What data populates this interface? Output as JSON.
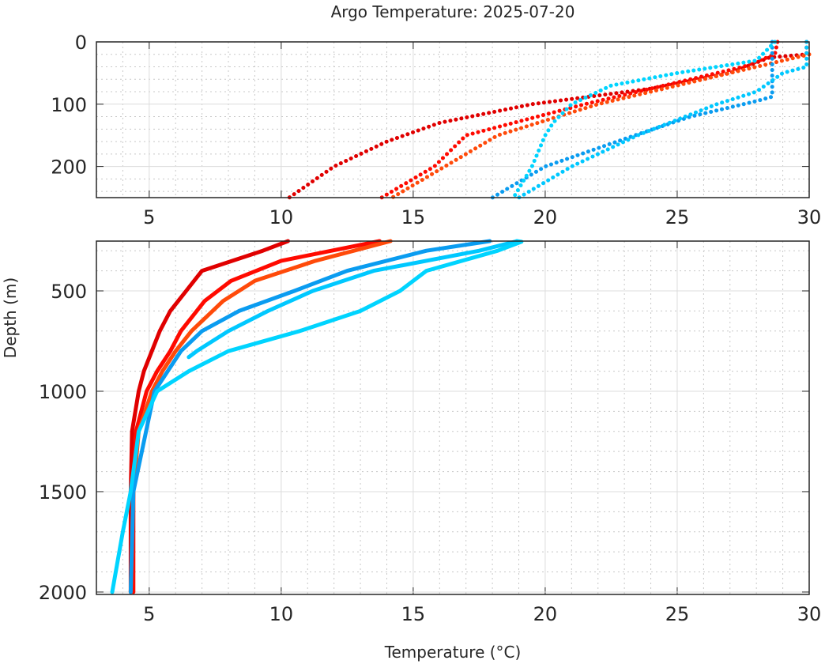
{
  "chart_data": {
    "type": "scatter",
    "title": "Argo Temperature: 2025-07-20",
    "xlabel": "Temperature (°C)",
    "ylabel": "Depth (m)",
    "xlim": [
      3,
      30
    ],
    "xticks": [
      5,
      10,
      15,
      20,
      25,
      30
    ],
    "grid": true,
    "panels": [
      {
        "ylim": [
          0,
          250
        ],
        "yticks": [
          0,
          100,
          200
        ],
        "reversed_y": true
      },
      {
        "ylim": [
          252,
          2012
        ],
        "yticks": [
          500,
          1000,
          1500,
          2000
        ],
        "reversed_y": true
      }
    ],
    "series": [
      {
        "color": "#e00000",
        "temp": [
          29.9,
          29.9,
          28.5,
          27.0,
          24.0,
          19.5,
          16.0,
          14.0,
          12.0,
          10.3,
          9.3,
          7.0,
          6.4,
          5.8,
          5.4,
          4.8,
          4.6,
          4.35,
          4.3,
          4.3
        ],
        "depth": [
          0,
          20,
          25,
          50,
          75,
          100,
          130,
          160,
          200,
          250,
          300,
          400,
          500,
          600,
          700,
          900,
          1000,
          1200,
          1500,
          2000
        ]
      },
      {
        "color": "#ff0a00",
        "temp": [
          28.8,
          28.7,
          27.5,
          24.5,
          21.5,
          17.0,
          15.8,
          13.8,
          10.0,
          8.1,
          7.1,
          6.2,
          5.8,
          5.3,
          4.9,
          4.5,
          4.4,
          4.4
        ],
        "depth": [
          0,
          20,
          40,
          70,
          100,
          150,
          200,
          250,
          350,
          450,
          550,
          700,
          800,
          900,
          1000,
          1200,
          1500,
          2000
        ]
      },
      {
        "color": "#ff4a0a",
        "temp": [
          30.0,
          27.0,
          22.0,
          18.2,
          16.2,
          14.2,
          11.3,
          9.0,
          7.8,
          6.6,
          6.0,
          5.5,
          5.1,
          4.6,
          4.4,
          4.3
        ],
        "depth": [
          20,
          50,
          100,
          150,
          200,
          250,
          350,
          450,
          550,
          700,
          800,
          900,
          1000,
          1200,
          1500,
          2000
        ]
      },
      {
        "color": "#0a9cf0",
        "temp": [
          28.6,
          28.6,
          28.0,
          25.5,
          23.4,
          20.0,
          18.8,
          18.0,
          15.5,
          12.5,
          10.5,
          8.4,
          7.0,
          6.2,
          5.2,
          4.4,
          4.3
        ],
        "depth": [
          0,
          88,
          95,
          120,
          150,
          200,
          230,
          250,
          300,
          400,
          500,
          600,
          700,
          800,
          1000,
          1500,
          2000
        ]
      },
      {
        "color": "#00c8ff",
        "temp": [
          29.9,
          29.9,
          29.0,
          28.0,
          26.5,
          23.5,
          21.0,
          19.0,
          17.5,
          13.5,
          11.2,
          9.5,
          8.0,
          6.8,
          6.5
        ],
        "depth": [
          0,
          40,
          50,
          80,
          100,
          150,
          200,
          250,
          300,
          400,
          500,
          600,
          700,
          800,
          830
        ]
      },
      {
        "color": "#00d4ff",
        "temp": [
          28.7,
          28.0,
          25.0,
          22.5,
          21.0,
          20.3,
          20.0,
          19.5,
          18.8,
          19.1,
          18.2,
          15.5,
          14.5,
          13.0,
          10.7,
          8.0,
          6.5,
          5.3,
          4.6,
          4.3,
          4.0,
          3.6
        ],
        "depth": [
          0,
          30,
          50,
          70,
          100,
          130,
          150,
          200,
          250,
          255,
          300,
          400,
          500,
          600,
          700,
          800,
          900,
          1000,
          1200,
          1500,
          1700,
          2000
        ]
      }
    ]
  }
}
